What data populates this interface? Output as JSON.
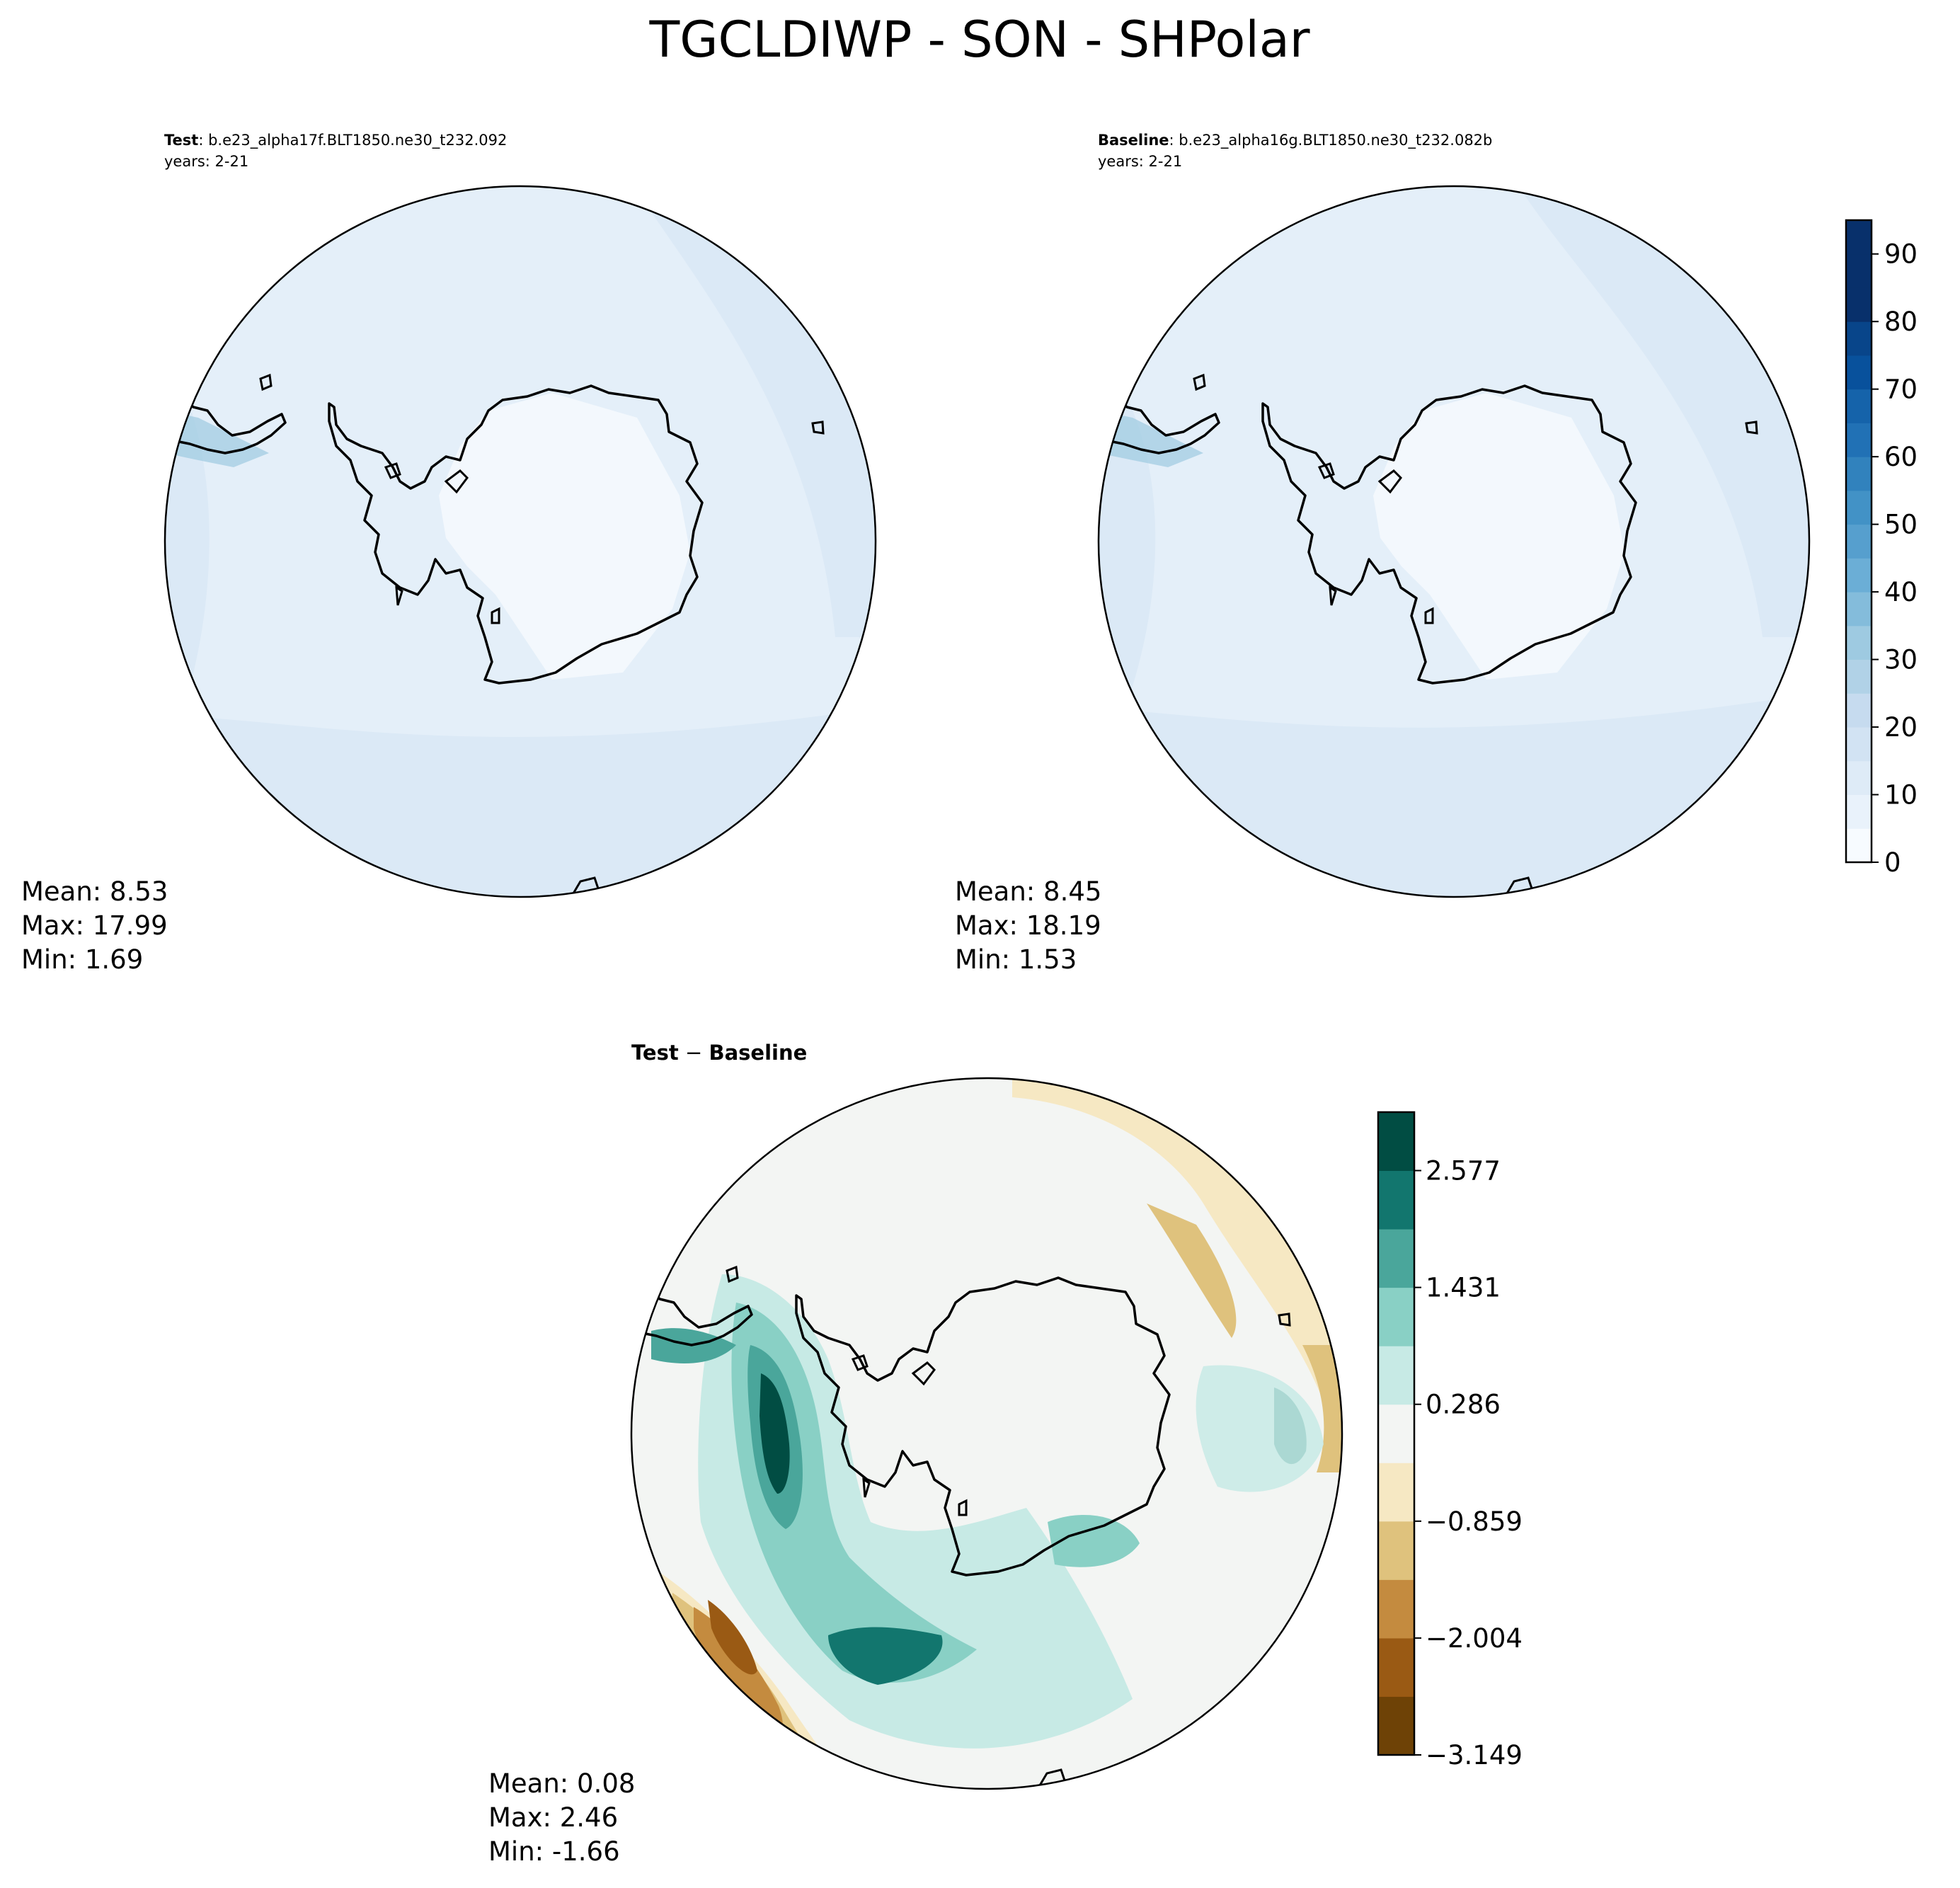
{
  "figure": {
    "title": "TGCLDIWP - SON - SHPolar"
  },
  "panels": {
    "test": {
      "case_label": "Test",
      "case_name": ": b.e23_alpha17f.BLT1850.ne30_t232.092",
      "years": "years: 2-21",
      "stats": {
        "mean": "Mean:  8.53",
        "max": "Max: 17.99",
        "min": "Min:  1.69"
      }
    },
    "baseline": {
      "case_label": "Baseline",
      "case_name": ": b.e23_alpha16g.BLT1850.ne30_t232.082b",
      "years": "years: 2-21",
      "stats": {
        "mean": "Mean:  8.45",
        "max": "Max: 18.19",
        "min": "Min:  1.53"
      }
    },
    "diff": {
      "title_a": "Test",
      "title_sep": " − ",
      "title_b": "Baseline",
      "stats": {
        "mean": "Mean:  0.08",
        "max": "Max:  2.46",
        "min": "Min: -1.66"
      }
    }
  },
  "colorbars": {
    "main": {
      "colormap": "Blues",
      "range": [
        0,
        95
      ],
      "level_step": 5,
      "ticks": [
        "0",
        "10",
        "20",
        "30",
        "40",
        "50",
        "60",
        "70",
        "80",
        "90"
      ],
      "colors": [
        "#f7fbff",
        "#e9f2fb",
        "#deebf7",
        "#d2e3f3",
        "#c6dbef",
        "#b1d2e7",
        "#9ecae1",
        "#84bcdb",
        "#6baed6",
        "#569fce",
        "#4292c6",
        "#3182bd",
        "#2171b5",
        "#1563aa",
        "#08519c",
        "#08458a",
        "#08306b",
        "#08306b",
        "#08306b"
      ]
    },
    "diff": {
      "colormap": "BrBG",
      "range": [
        -3.149,
        3.149
      ],
      "ticks": [
        "−3.149",
        "−2.004",
        "−0.859",
        "0.286",
        "1.431",
        "2.577"
      ],
      "colors": [
        "#6e4206",
        "#9a5a14",
        "#c48b3f",
        "#dfc27d",
        "#f6e8c3",
        "#f3f5f3",
        "#c7eae5",
        "#89d0c5",
        "#4aa69b",
        "#12766e",
        "#014d43"
      ]
    }
  },
  "map_colors": {
    "ocean_fill": "#e4eff9",
    "continent_fill": "#f3f8fd",
    "diff_neutral": "#f3f5f3"
  }
}
